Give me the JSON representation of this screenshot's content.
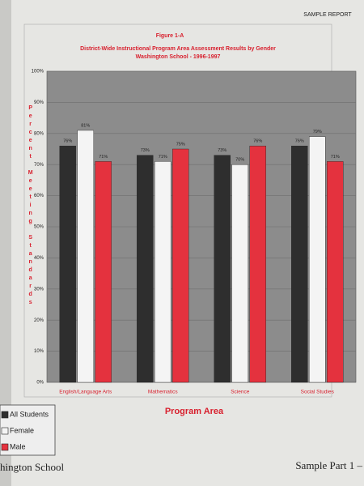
{
  "page": {
    "header": "SAMPLE REPORT",
    "footer_left": "hington School",
    "footer_right": "Sample Part 1 –"
  },
  "chart_data": {
    "type": "bar",
    "figure_label": "Figure 1-A",
    "title": "District-Wide Instructional Program Area Assessment Results by Gender",
    "subtitle": "Washington School  -  1996-1997",
    "x_label": "Program Area",
    "y_label": "Percent Meeting Standards",
    "categories": [
      "English/Language Arts",
      "Mathematics",
      "Science",
      "Social Studies"
    ],
    "series": [
      {
        "name": "All Students",
        "color": "#2e2e2e",
        "values": [
          76,
          73,
          73,
          76
        ],
        "value_labels": [
          "76%",
          "73%",
          "73%",
          "76%"
        ]
      },
      {
        "name": "Female",
        "color": "#f4f4f4",
        "values": [
          81,
          71,
          70,
          79
        ],
        "value_labels": [
          "81%",
          "71%",
          "70%",
          "79%"
        ]
      },
      {
        "name": "Male",
        "color": "#e4323e",
        "values": [
          71,
          75,
          76,
          71
        ],
        "value_labels": [
          "71%",
          "75%",
          "76%",
          "71%"
        ]
      }
    ],
    "ylim": [
      0,
      100
    ],
    "yticks": [
      {
        "value": 0,
        "label": "0%"
      },
      {
        "value": 10,
        "label": "10%"
      },
      {
        "value": 20,
        "label": "20%"
      },
      {
        "value": 30,
        "label": "30%"
      },
      {
        "value": 40,
        "label": "40%"
      },
      {
        "value": 50,
        "label": "50%"
      },
      {
        "value": 60,
        "label": "60%"
      },
      {
        "value": 70,
        "label": "70%"
      },
      {
        "value": 80,
        "label": "80%"
      },
      {
        "value": 90,
        "label": "90%"
      },
      {
        "value": 100,
        "label": "100%"
      }
    ],
    "grid": true
  }
}
